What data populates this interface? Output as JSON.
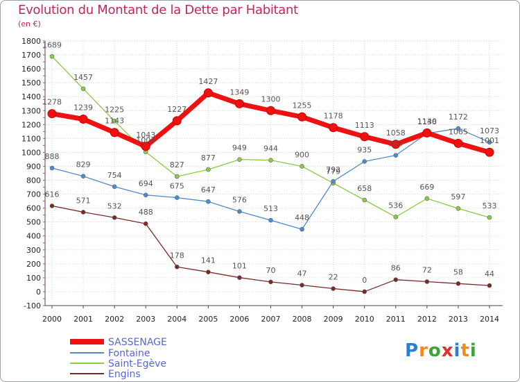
{
  "title": "Evolution du Montant de la Dette par Habitant",
  "subtitle": "(en €)",
  "logo": {
    "text": "Proxiti",
    "colors": [
      "#2a7fd0",
      "#ef8b1e",
      "#3aa33a",
      "#e03030",
      "#2a7fd0",
      "#ef8b1e",
      "#3aa33a"
    ]
  },
  "chart_data": {
    "type": "line",
    "title": "Evolution du Montant de la Dette par Habitant",
    "subtitle": "(en €)",
    "xlabel": "",
    "ylabel": "",
    "x": [
      "2000",
      "2001",
      "2002",
      "2003",
      "2004",
      "2005",
      "2006",
      "2007",
      "2008",
      "2009",
      "2010",
      "2011",
      "2012",
      "2013",
      "2014"
    ],
    "ylim": [
      -100,
      1800
    ],
    "yticks": [
      -100,
      0,
      100,
      200,
      300,
      400,
      500,
      600,
      700,
      800,
      900,
      1000,
      1100,
      1200,
      1300,
      1400,
      1500,
      1600,
      1700,
      1800
    ],
    "grid": true,
    "legend": "bottom-left",
    "series": [
      {
        "name": "SASSENAGE",
        "color": "#ee1111",
        "values": [
          1278,
          1239,
          1143,
          1043,
          1227,
          1427,
          1349,
          1300,
          1255,
          1178,
          1113,
          1058,
          1140,
          1065,
          1001
        ],
        "labels": [
          "1278",
          "1239",
          "1143",
          "1043",
          "1227",
          "1427",
          "1349",
          "1300",
          "1255",
          "1178",
          "1113",
          "1058",
          "1140",
          "1065",
          "1001"
        ]
      },
      {
        "name": "Fontaine",
        "color": "#4d8ad0",
        "values": [
          888,
          829,
          754,
          694,
          675,
          647,
          576,
          513,
          448,
          792,
          935,
          979,
          1136,
          1172,
          1073
        ],
        "labels": [
          "888",
          "829",
          "754",
          "694",
          "675",
          "647",
          "576",
          "513",
          "448",
          "792",
          "935",
          "979",
          "1136",
          "1172",
          "1073"
        ]
      },
      {
        "name": "Saint-Egève",
        "color": "#88cc44",
        "values": [
          1689,
          1457,
          1225,
          1004,
          827,
          877,
          949,
          944,
          900,
          779,
          658,
          536,
          669,
          597,
          533
        ],
        "labels": [
          "1689",
          "1457",
          "1225",
          "1004",
          "827",
          "877",
          "949",
          "944",
          "900",
          "779",
          "658",
          "536",
          "669",
          "597",
          "533"
        ]
      },
      {
        "name": "Engins",
        "color": "#7a2828",
        "values": [
          616,
          571,
          532,
          488,
          178,
          141,
          101,
          70,
          47,
          22,
          0,
          86,
          72,
          58,
          44
        ],
        "labels": [
          "616",
          "571",
          "532",
          "488",
          "178",
          "141",
          "101",
          "70",
          "47",
          "22",
          "0",
          "86",
          "72",
          "58",
          "44"
        ]
      }
    ]
  }
}
